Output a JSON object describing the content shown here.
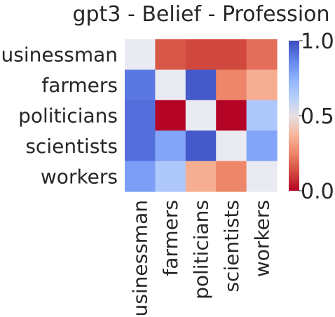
{
  "chart_data": {
    "type": "heatmap",
    "title": "gpt3 - Belief - Profession",
    "rows": [
      "businessman",
      "farmers",
      "politicians",
      "scientists",
      "workers"
    ],
    "columns": [
      "businessman",
      "farmers",
      "politicians",
      "scientists",
      "workers"
    ],
    "values": [
      [
        null,
        0.15,
        0.12,
        0.12,
        0.2
      ],
      [
        0.9,
        null,
        0.97,
        0.25,
        0.35
      ],
      [
        0.92,
        0.0,
        null,
        0.0,
        0.65
      ],
      [
        0.92,
        0.78,
        0.97,
        null,
        0.78
      ],
      [
        0.8,
        0.65,
        0.35,
        0.25,
        null
      ]
    ],
    "diagonal_color": "#eaeaf2",
    "colorbar": {
      "min": 0.0,
      "max": 1.0,
      "tick_labels": [
        "0.0",
        "0.5",
        "1.0"
      ],
      "tick_values": [
        0.0,
        0.5,
        1.0
      ],
      "colormap": "coolwarm_r"
    }
  }
}
